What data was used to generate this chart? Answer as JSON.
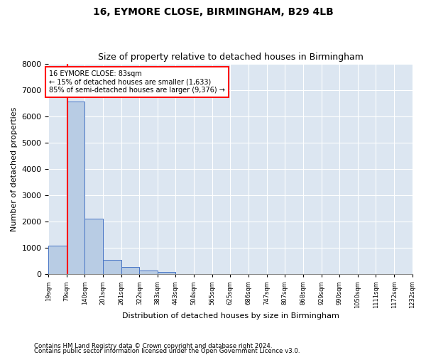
{
  "title1": "16, EYMORE CLOSE, BIRMINGHAM, B29 4LB",
  "title2": "Size of property relative to detached houses in Birmingham",
  "xlabel": "Distribution of detached houses by size in Birmingham",
  "ylabel": "Number of detached properties",
  "footnote1": "Contains HM Land Registry data © Crown copyright and database right 2024.",
  "footnote2": "Contains public sector information licensed under the Open Government Licence v3.0.",
  "annotation_line1": "16 EYMORE CLOSE: 83sqm",
  "annotation_line2": "← 15% of detached houses are smaller (1,633)",
  "annotation_line3": "85% of semi-detached houses are larger (9,376) →",
  "property_size": 83,
  "bin_edges": [
    19,
    79,
    140,
    201,
    261,
    322,
    383,
    443,
    504,
    565,
    625,
    686,
    747,
    807,
    868,
    929,
    990,
    1050,
    1111,
    1172,
    1232
  ],
  "bar_values": [
    1100,
    6550,
    2100,
    550,
    280,
    150,
    80,
    20,
    8,
    3,
    0,
    0,
    0,
    0,
    0,
    0,
    0,
    0,
    0,
    0
  ],
  "bar_color": "#b8cce4",
  "bar_edge_color": "#4472c4",
  "line_color": "#ff0000",
  "bg_color": "#dce6f1",
  "ylim": [
    0,
    8000
  ],
  "yticks": [
    0,
    1000,
    2000,
    3000,
    4000,
    5000,
    6000,
    7000,
    8000
  ]
}
